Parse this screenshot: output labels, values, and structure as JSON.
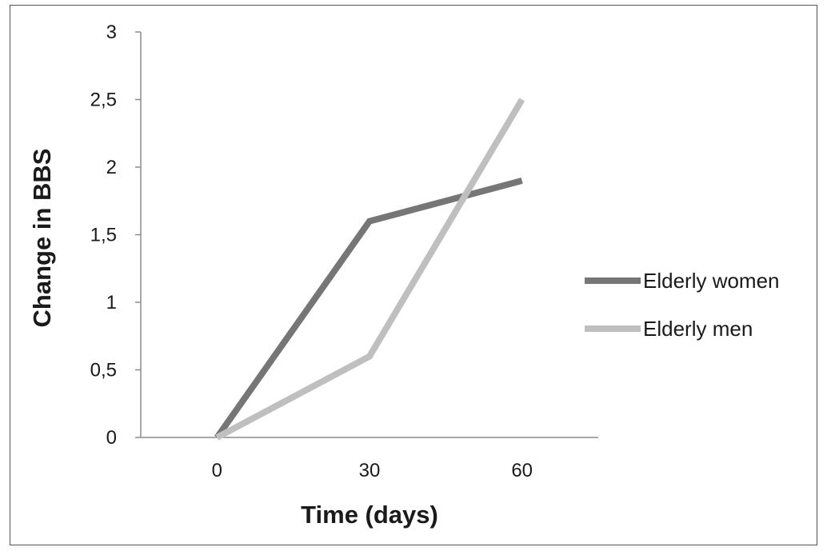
{
  "chart_data": {
    "type": "line",
    "title": "",
    "xlabel": "Time (days)",
    "ylabel": "Change in BBS",
    "x": [
      0,
      30,
      60
    ],
    "x_tick_labels": [
      "0",
      "30",
      "60"
    ],
    "y_tick_labels": [
      "0",
      "0,5",
      "1",
      "1,5",
      "2",
      "2,5",
      "3"
    ],
    "y_ticks": [
      0,
      0.5,
      1,
      1.5,
      2,
      2.5,
      3
    ],
    "ylim": [
      0,
      3
    ],
    "grid": false,
    "legend_position": "right",
    "series": [
      {
        "name": "Elderly women",
        "values": [
          0,
          1.6,
          1.9
        ],
        "color": "#767676"
      },
      {
        "name": "Elderly men",
        "values": [
          0,
          0.6,
          2.5
        ],
        "color": "#bfbfbf"
      }
    ]
  }
}
